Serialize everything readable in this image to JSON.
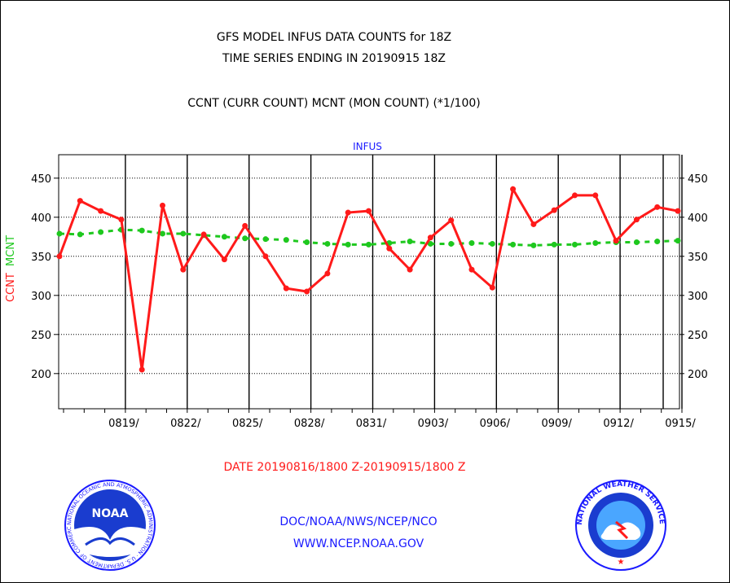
{
  "header": {
    "title_line1": "GFS MODEL INFUS DATA COUNTS for 18Z",
    "title_line2": "TIME SERIES ENDING IN 20190915 18Z",
    "subtitle": "CCNT (CURR COUNT) MCNT (MON COUNT) (*1/100)"
  },
  "footer": {
    "date_range": "DATE 20190816/1800 Z-20190915/1800 Z",
    "org_line": "DOC/NOAA/NWS/NCEP/NCO",
    "url_line": "WWW.NCEP.NOAA.GOV",
    "noaa_logo_text": "NOAA",
    "noaa_seal_text": "NATIONAL OCEANIC AND ATMOSPHERIC ADMINISTRATION · U.S. DEPARTMENT OF COMMERCE",
    "nws_seal_text": "NATIONAL WEATHER SERVICE"
  },
  "colors": {
    "ccnt": "#ff1a1a",
    "mcnt": "#1ec81e",
    "panel_title": "#1a1aff"
  },
  "chart_data": {
    "type": "line",
    "title": "INFUS",
    "ylabel_parts": [
      "CCNT",
      "MCNT"
    ],
    "ylim": [
      155,
      480
    ],
    "yticks": [
      200,
      250,
      300,
      350,
      400,
      450
    ],
    "grid": true,
    "x_tick_labels": [
      "0819/",
      "0822/",
      "0825/",
      "0828/",
      "0831/",
      "0903/",
      "0906/",
      "0909/",
      "0912/",
      "0915/"
    ],
    "x_tick_days": [
      3,
      6,
      9,
      12,
      15,
      18,
      21,
      24,
      27,
      30
    ],
    "x_days": [
      0,
      1,
      2,
      3,
      4,
      5,
      6,
      7,
      8,
      9,
      10,
      11,
      12,
      13,
      14,
      15,
      16,
      17,
      18,
      19,
      20,
      21,
      22,
      23,
      24,
      25,
      26,
      27,
      28,
      29,
      30
    ],
    "series": [
      {
        "name": "CCNT",
        "values": [
          350,
          421,
          408,
          397,
          205,
          415,
          333,
          378,
          346,
          389,
          350,
          309,
          305,
          328,
          406,
          408,
          360,
          333,
          374,
          396,
          333,
          310,
          436,
          391,
          409,
          428,
          428,
          370,
          397,
          413,
          408
        ]
      },
      {
        "name": "MCNT",
        "values": [
          379,
          378,
          381,
          384,
          383,
          379,
          379,
          377,
          375,
          373,
          372,
          371,
          368,
          366,
          365,
          365,
          367,
          369,
          366,
          366,
          367,
          366,
          365,
          364,
          365,
          365,
          367,
          368,
          368,
          369,
          370
        ]
      }
    ]
  }
}
